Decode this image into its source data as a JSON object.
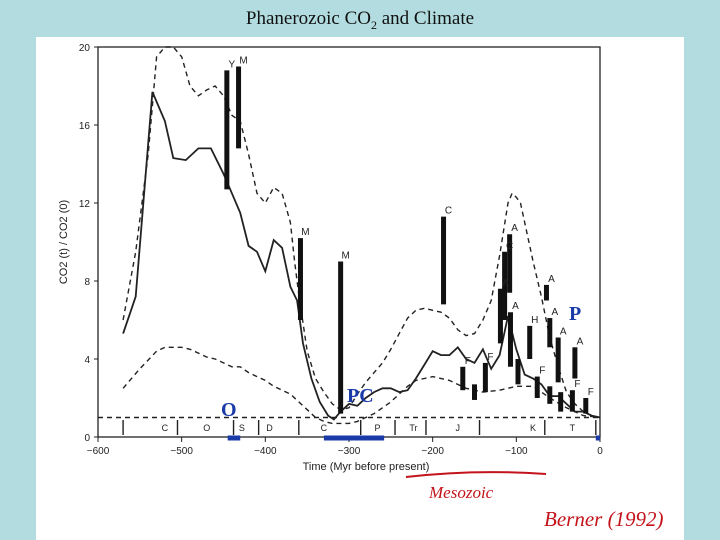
{
  "slide": {
    "title": "Phanerozoic CO",
    "title_sub": "2",
    "title_tail": " and Climate"
  },
  "chart_data": {
    "type": "line",
    "xlabel": "Time (Myr before present)",
    "ylabel": "CO2 (t) / CO2 (0)",
    "xlim": [
      -600,
      0
    ],
    "ylim": [
      0,
      20
    ],
    "x_ticks": [
      -600,
      -500,
      -400,
      -300,
      -200,
      -100,
      0
    ],
    "y_ticks": [
      0,
      4,
      8,
      12,
      16,
      20
    ],
    "x_tick_labels": [
      "−600",
      "−500",
      "−400",
      "−300",
      "−200",
      "−100",
      "0"
    ],
    "y_tick_labels": [
      "0",
      "4",
      "8",
      "12",
      "16",
      "20"
    ],
    "series": [
      {
        "style": "solid",
        "x": [
          -570,
          -555,
          -535,
          -520,
          -510,
          -495,
          -480,
          -465,
          -450,
          -440,
          -430,
          -420,
          -410,
          -400,
          -390,
          -380,
          -370,
          -362,
          -355,
          -345,
          -335,
          -325,
          -318,
          -310,
          -300,
          -290,
          -280,
          -270,
          -260,
          -250,
          -240,
          -230,
          -220,
          -210,
          -200,
          -190,
          -180,
          -170,
          -160,
          -150,
          -140,
          -130,
          -120,
          -110,
          -100,
          -90,
          -80,
          -70,
          -60,
          -50,
          -40,
          -30,
          -20,
          -10,
          0
        ],
        "y": [
          5.3,
          7.2,
          17.7,
          16.2,
          14.3,
          14.2,
          14.8,
          14.8,
          13.5,
          12.5,
          11.5,
          9.8,
          9.5,
          8.5,
          10.1,
          9.7,
          7.7,
          7.0,
          4.8,
          3.0,
          1.8,
          1.1,
          0.9,
          1.3,
          1.7,
          1.6,
          2.0,
          2.3,
          2.5,
          2.5,
          2.3,
          2.4,
          3.0,
          3.7,
          4.4,
          4.2,
          4.2,
          4.6,
          4.0,
          3.8,
          4.5,
          3.5,
          4.2,
          6.2,
          4.5,
          3.2,
          3.0,
          2.7,
          2.1,
          2.1,
          1.7,
          1.3,
          1.3,
          1.1,
          1.0
        ]
      },
      {
        "style": "dashed",
        "x": [
          -570,
          -555,
          -540,
          -530,
          -520,
          -510,
          -500,
          -490,
          -480,
          -470,
          -460,
          -450,
          -440,
          -430,
          -420,
          -410,
          -400,
          -390,
          -380,
          -370,
          -365,
          -360,
          -350,
          -340,
          -330,
          -320,
          -310,
          -300,
          -290,
          -280,
          -270,
          -260,
          -250,
          -240,
          -230,
          -220,
          -210,
          -200,
          -190,
          -180,
          -170,
          -160,
          -150,
          -140,
          -130,
          -120,
          -110,
          -105,
          -100,
          -95,
          -90,
          -80,
          -70,
          -60,
          -50,
          -40,
          -30,
          -20,
          -10,
          0
        ],
        "y": [
          6.0,
          9.5,
          14.5,
          19.5,
          20.0,
          20.0,
          19.5,
          18.0,
          17.5,
          17.8,
          18.0,
          17.5,
          16.5,
          16.2,
          14.5,
          12.5,
          12.0,
          12.8,
          12.5,
          11.0,
          9.0,
          7.3,
          4.4,
          3.0,
          2.3,
          1.7,
          1.4,
          1.5,
          2.2,
          2.8,
          3.3,
          3.8,
          4.5,
          5.3,
          6.1,
          6.5,
          6.6,
          6.5,
          6.4,
          6.1,
          5.5,
          5.2,
          5.3,
          6.0,
          7.0,
          9.3,
          12.0,
          12.5,
          12.3,
          12.0,
          11.0,
          9.0,
          7.2,
          5.1,
          3.6,
          2.3,
          1.7,
          1.3,
          1.1,
          1.0
        ]
      },
      {
        "style": "dashed",
        "x": [
          -570,
          -550,
          -530,
          -520,
          -510,
          -500,
          -490,
          -480,
          -470,
          -460,
          -450,
          -440,
          -430,
          -420,
          -410,
          -400,
          -390,
          -380,
          -370,
          -360,
          -350,
          -340,
          -330,
          -320,
          -310,
          -300,
          -290,
          -280,
          -270,
          -260,
          -250,
          -240,
          -230,
          -220,
          -210,
          -200,
          -180,
          -160,
          -140,
          -120,
          -100,
          -80,
          -60,
          -40,
          -20,
          0
        ],
        "y": [
          2.5,
          3.5,
          4.4,
          4.6,
          4.6,
          4.6,
          4.5,
          4.3,
          4.1,
          4.0,
          3.8,
          3.6,
          3.6,
          3.3,
          3.1,
          2.9,
          2.6,
          2.4,
          2.2,
          1.8,
          1.4,
          1.0,
          0.8,
          0.7,
          0.7,
          0.7,
          0.8,
          1.0,
          1.2,
          1.5,
          1.8,
          2.2,
          2.6,
          2.9,
          3.0,
          3.1,
          2.9,
          2.5,
          2.3,
          2.4,
          2.6,
          2.6,
          2.0,
          1.5,
          1.1,
          1.0
        ]
      },
      {
        "style": "dashed",
        "x": [
          -600,
          0
        ],
        "y": [
          1.0,
          1.0
        ]
      }
    ],
    "glaciation_bars": [
      {
        "label": "Y",
        "x": -446,
        "y1": 12.7,
        "y2": 18.8
      },
      {
        "label": "M",
        "x": -432,
        "y1": 14.8,
        "y2": 19.0
      },
      {
        "label": "M",
        "x": -358,
        "y1": 6.0,
        "y2": 10.2
      },
      {
        "label": "M",
        "x": -310,
        "y1": 1.2,
        "y2": 9.0
      },
      {
        "label": "C",
        "x": -187,
        "y1": 6.8,
        "y2": 11.3
      },
      {
        "label": "A",
        "x": -108,
        "y1": 7.4,
        "y2": 10.4
      },
      {
        "label": "C",
        "x": -114,
        "y1": 6.0,
        "y2": 9.5
      },
      {
        "label": "A",
        "x": -119,
        "y1": 4.8,
        "y2": 7.6
      },
      {
        "label": "A",
        "x": -107,
        "y1": 3.6,
        "y2": 6.4
      },
      {
        "label": "A",
        "x": -64,
        "y1": 7.0,
        "y2": 7.8
      },
      {
        "label": "A",
        "x": -60,
        "y1": 4.6,
        "y2": 6.1
      },
      {
        "label": "H",
        "x": -84,
        "y1": 4.0,
        "y2": 5.7
      },
      {
        "label": "A",
        "x": -50,
        "y1": 2.8,
        "y2": 5.1
      },
      {
        "label": "A",
        "x": -30,
        "y1": 3.0,
        "y2": 4.6
      },
      {
        "label": "F",
        "x": -164,
        "y1": 2.4,
        "y2": 3.6
      },
      {
        "label": "F",
        "x": -137,
        "y1": 2.3,
        "y2": 3.8
      },
      {
        "label": "",
        "x": -150,
        "y1": 1.9,
        "y2": 2.7
      },
      {
        "label": "F",
        "x": -75,
        "y1": 2.0,
        "y2": 3.1
      },
      {
        "label": "F",
        "x": -33,
        "y1": 1.3,
        "y2": 2.4
      },
      {
        "label": "F",
        "x": -17,
        "y1": 1.2,
        "y2": 2.0
      },
      {
        "label": "",
        "x": -47,
        "y1": 1.3,
        "y2": 2.3
      },
      {
        "label": "",
        "x": -60,
        "y1": 1.7,
        "y2": 2.6
      },
      {
        "label": "",
        "x": -98,
        "y1": 2.7,
        "y2": 4.0
      }
    ],
    "period_labels": [
      "C",
      "O",
      "S",
      "D",
      "C",
      "P",
      "Tr",
      "J",
      "K",
      "T"
    ],
    "period_x": [
      -520,
      -470,
      -428,
      -395,
      -330,
      -266,
      -223,
      -170,
      -80,
      -33
    ],
    "period_boundaries": [
      -570,
      -505,
      -438,
      -408,
      -360,
      -286,
      -245,
      -208,
      -144,
      -66,
      -5
    ],
    "annotations": {
      "o_label": "O",
      "pc_label": "PC",
      "p_label": "P",
      "mesozoic_label": "Mesozoic",
      "citation": "Berner (1992)",
      "ice_marks": [
        [
          -445,
          -430
        ],
        [
          -330,
          -258
        ],
        [
          -5,
          0
        ]
      ]
    },
    "grid": false
  }
}
